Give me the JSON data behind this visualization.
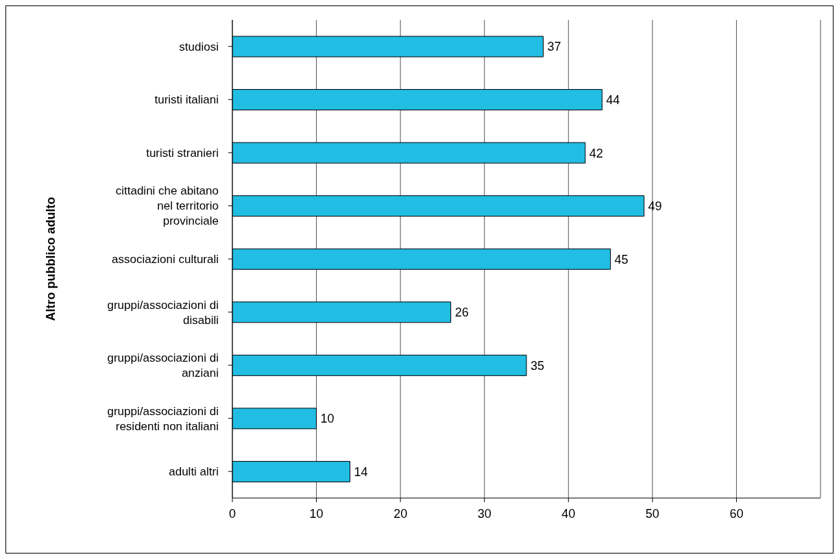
{
  "chart_data": {
    "type": "bar",
    "orientation": "horizontal",
    "ylabel": "Altro pubblico adulto",
    "categories": [
      "studiosi",
      "turisti italiani",
      "turisti stranieri",
      "cittadini che abitano nel territorio provinciale",
      "associazioni culturali",
      "gruppi/associazioni di disabili",
      "gruppi/associazioni di anziani",
      "gruppi/associazioni di residenti non italiani",
      "adulti altri"
    ],
    "values": [
      37,
      44,
      42,
      49,
      45,
      26,
      35,
      10,
      14
    ],
    "color": "#22bde3",
    "xlim": [
      0,
      70
    ],
    "xticks": [
      0,
      10,
      20,
      30,
      40,
      50,
      60
    ],
    "grid": "x",
    "data_labels": true
  }
}
